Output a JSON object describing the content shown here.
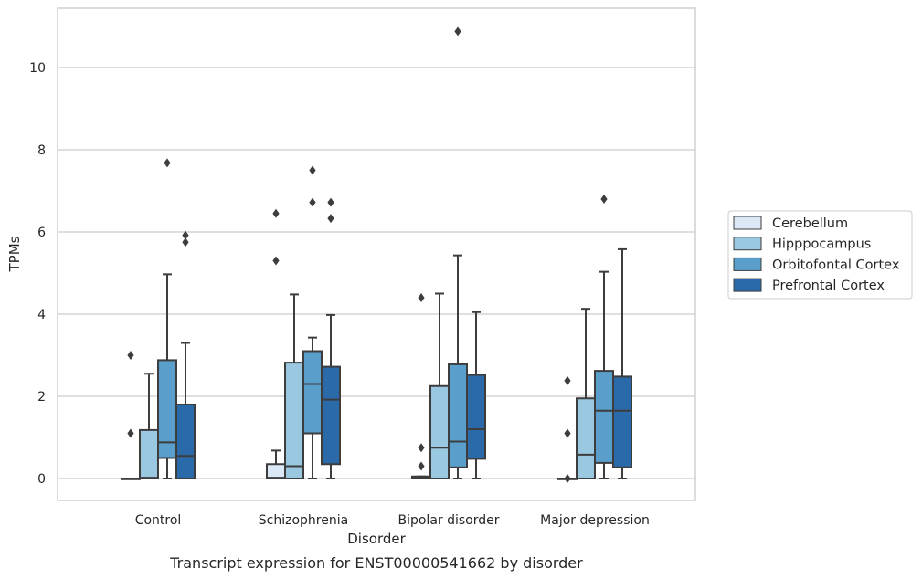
{
  "caption": "Transcript expression for ENST00000541662 by disorder",
  "chart_data": {
    "type": "box",
    "xlabel": "Disorder",
    "ylabel": "TPMs",
    "ylim": [
      -0.5,
      11.45
    ],
    "yticks": [
      0,
      2,
      4,
      6,
      8,
      10
    ],
    "grid": "horizontal",
    "legend_position": "right",
    "categories": [
      "Control",
      "Schizophrenia",
      "Bipolar disorder",
      "Major depression"
    ],
    "series": [
      {
        "name": "Cerebellum",
        "color": "#dbe9f6",
        "boxes": [
          {
            "whislo": 0,
            "q1": 0,
            "med": 0,
            "q3": 0,
            "whishi": 0,
            "fliers": [
              1.1,
              3.0
            ]
          },
          {
            "whislo": 0,
            "q1": 0,
            "med": 0.02,
            "q3": 0.35,
            "whishi": 0.68,
            "fliers": [
              5.3,
              6.45
            ]
          },
          {
            "whislo": 0,
            "q1": 0,
            "med": 0.02,
            "q3": 0.05,
            "whishi": 0.05,
            "fliers": [
              0.3,
              0.75,
              4.4
            ]
          },
          {
            "whislo": 0,
            "q1": 0,
            "med": 0,
            "q3": 0,
            "whishi": 0,
            "fliers": [
              0.0,
              1.1,
              2.38
            ]
          }
        ]
      },
      {
        "name": "Hipppocampus",
        "color": "#9ac8e0",
        "boxes": [
          {
            "whislo": 0,
            "q1": 0,
            "med": 0.02,
            "q3": 1.18,
            "whishi": 2.55,
            "fliers": []
          },
          {
            "whislo": 0,
            "q1": 0,
            "med": 0.3,
            "q3": 2.82,
            "whishi": 4.48,
            "fliers": []
          },
          {
            "whislo": 0,
            "q1": 0,
            "med": 0.75,
            "q3": 2.25,
            "whishi": 4.5,
            "fliers": []
          },
          {
            "whislo": 0,
            "q1": 0,
            "med": 0.58,
            "q3": 1.95,
            "whishi": 4.13,
            "fliers": []
          }
        ]
      },
      {
        "name": "Orbitofontal Cortex",
        "color": "#5a9fcc",
        "boxes": [
          {
            "whislo": 0,
            "q1": 0.5,
            "med": 0.88,
            "q3": 2.88,
            "whishi": 4.97,
            "fliers": [
              7.68
            ]
          },
          {
            "whislo": 0,
            "q1": 1.1,
            "med": 2.3,
            "q3": 3.1,
            "whishi": 3.43,
            "fliers": [
              6.72,
              7.5
            ]
          },
          {
            "whislo": 0,
            "q1": 0.27,
            "med": 0.9,
            "q3": 2.78,
            "whishi": 5.43,
            "fliers": [
              10.88
            ]
          },
          {
            "whislo": 0,
            "q1": 0.38,
            "med": 1.65,
            "q3": 2.62,
            "whishi": 5.03,
            "fliers": [
              6.8
            ]
          }
        ]
      },
      {
        "name": "Prefrontal Cortex",
        "color": "#2b6aa8",
        "boxes": [
          {
            "whislo": 0,
            "q1": 0,
            "med": 0.55,
            "q3": 1.8,
            "whishi": 3.3,
            "fliers": [
              5.75,
              5.92
            ]
          },
          {
            "whislo": 0,
            "q1": 0.35,
            "med": 1.92,
            "q3": 2.72,
            "whishi": 3.98,
            "fliers": [
              6.33,
              6.72
            ]
          },
          {
            "whislo": 0,
            "q1": 0.48,
            "med": 1.2,
            "q3": 2.52,
            "whishi": 4.05,
            "fliers": []
          },
          {
            "whislo": 0,
            "q1": 0.27,
            "med": 1.65,
            "q3": 2.48,
            "whishi": 5.58,
            "fliers": []
          }
        ]
      }
    ]
  }
}
